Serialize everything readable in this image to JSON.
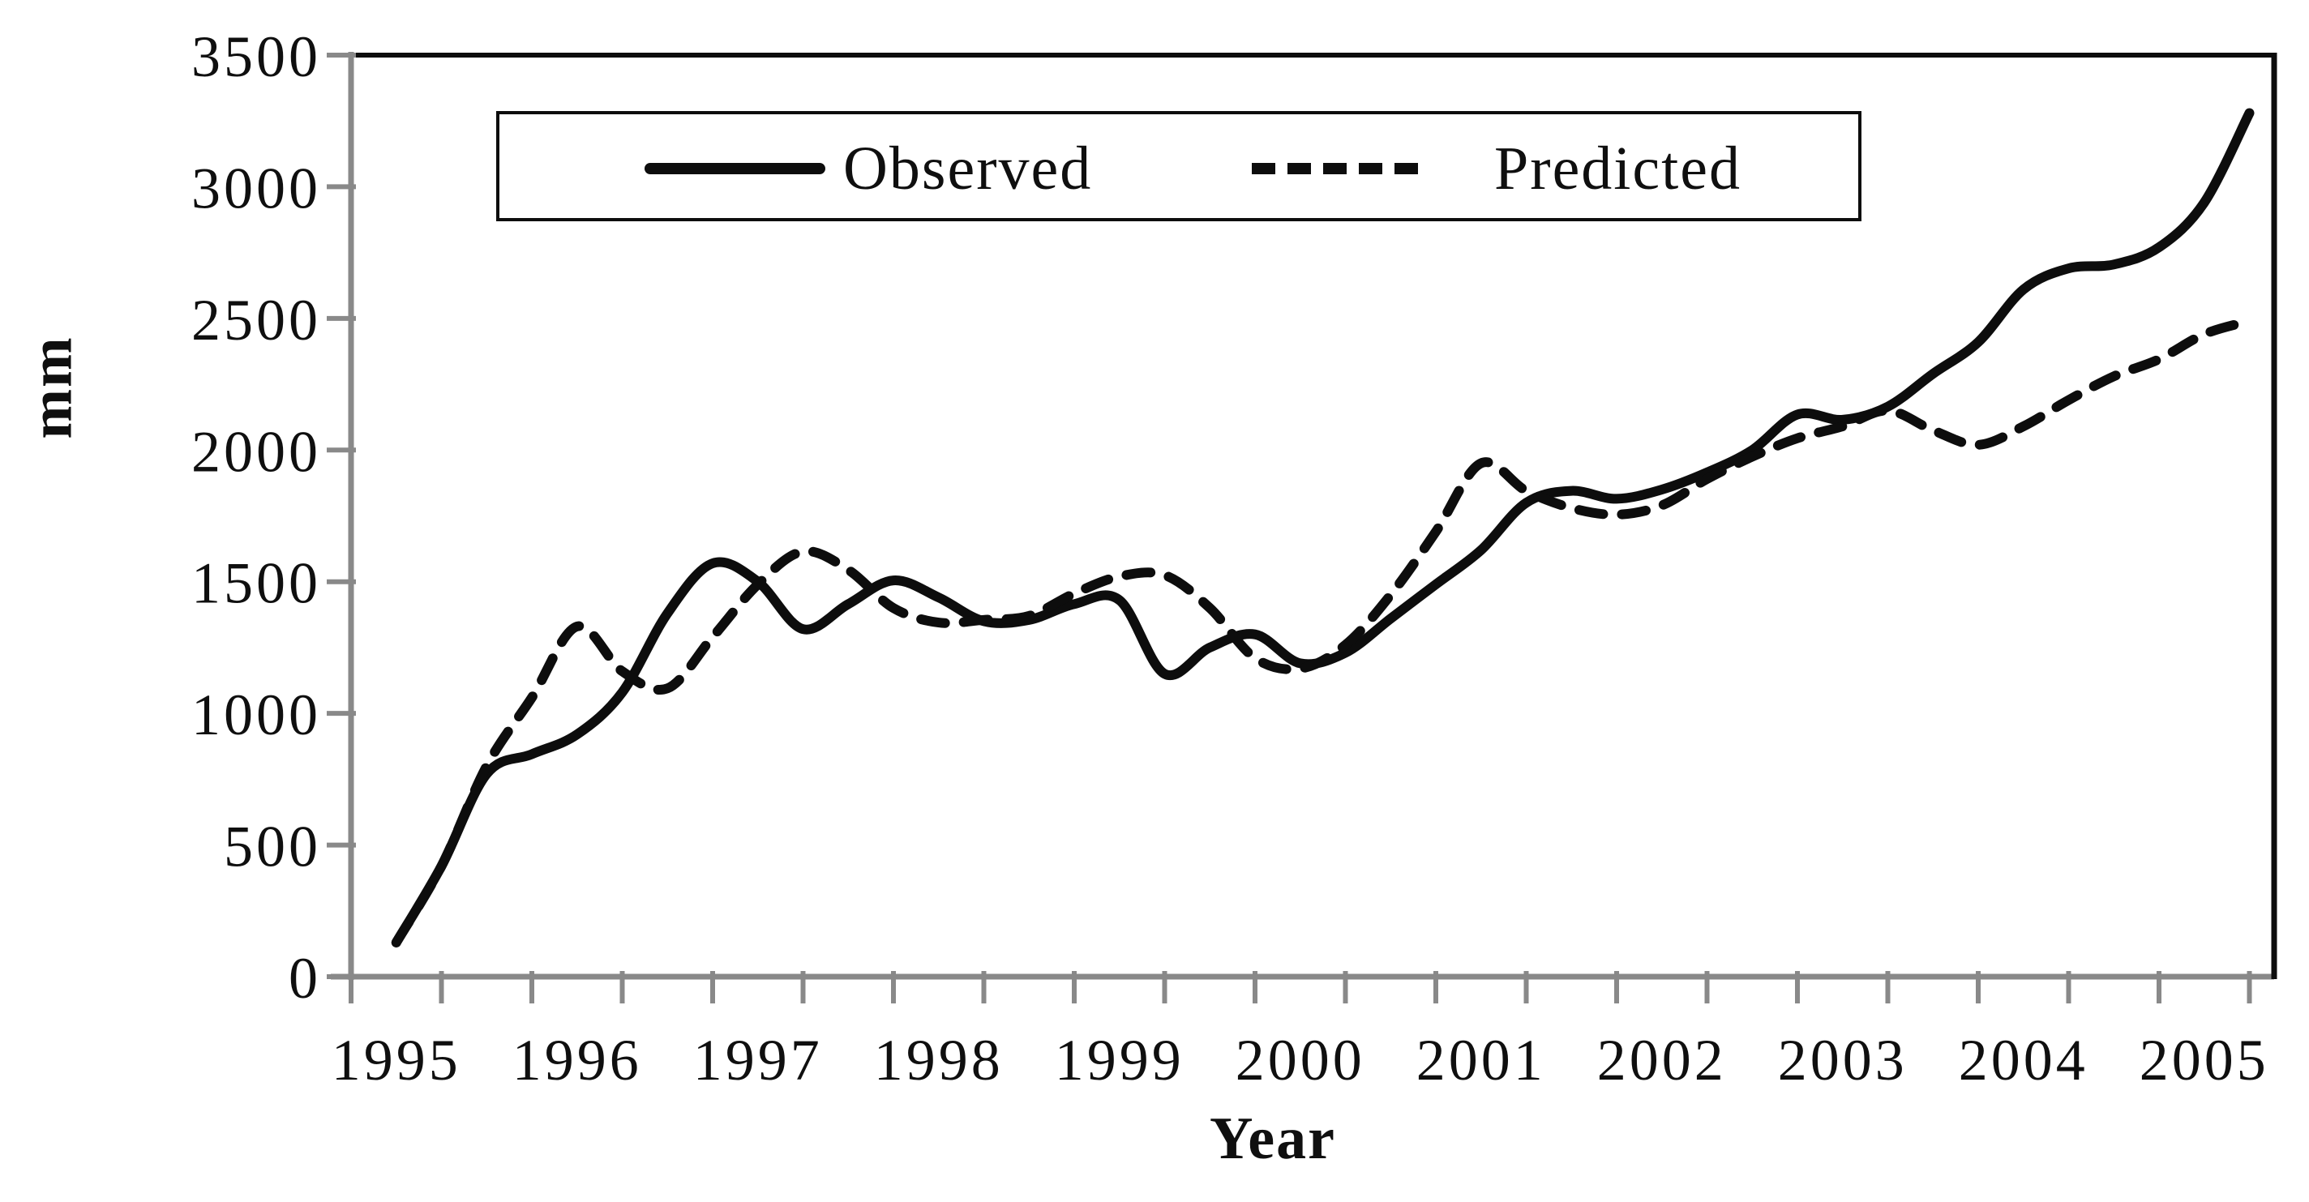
{
  "chart_data": {
    "type": "line",
    "title": "",
    "xlabel": "Year",
    "ylabel": "mm",
    "x_unit": "decimal_year",
    "xlim": [
      1995,
      2005.65
    ],
    "ylim": [
      0,
      3500
    ],
    "y_tick_step": 500,
    "x_minor_tick_step": 0.5,
    "grid": false,
    "legend_position": "top-center-boxed",
    "y_tick_labels": [
      "0",
      "500",
      "1000",
      "1500",
      "2000",
      "2500",
      "3000",
      "3500"
    ],
    "x_tick_labels": [
      "1995",
      "1996",
      "1997",
      "1998",
      "1999",
      "2000",
      "2001",
      "2002",
      "2003",
      "2004",
      "2005"
    ],
    "x": [
      1995.25,
      1995.5,
      1995.75,
      1996,
      1996.25,
      1996.5,
      1996.75,
      1997,
      1997.25,
      1997.5,
      1997.75,
      1998,
      1998.25,
      1998.5,
      1998.75,
      1999,
      1999.25,
      1999.5,
      1999.75,
      2000,
      2000.25,
      2000.5,
      2000.75,
      2001,
      2001.25,
      2001.5,
      2001.75,
      2002,
      2002.25,
      2002.5,
      2002.75,
      2003,
      2003.25,
      2003.5,
      2003.75,
      2004,
      2004.25,
      2004.5,
      2004.75,
      2005,
      2005.25,
      2005.5
    ],
    "series": [
      {
        "name": "Observed",
        "style": "solid",
        "color": "#0d0d0d",
        "values": [
          130,
          420,
          770,
          845,
          920,
          1080,
          1380,
          1570,
          1500,
          1320,
          1415,
          1505,
          1440,
          1350,
          1355,
          1415,
          1430,
          1150,
          1250,
          1300,
          1190,
          1230,
          1360,
          1490,
          1620,
          1800,
          1845,
          1815,
          1850,
          1915,
          2000,
          2135,
          2115,
          2165,
          2290,
          2410,
          2610,
          2690,
          2705,
          2770,
          2940,
          3280
        ]
      },
      {
        "name": "Predicted",
        "style": "dashed",
        "color": "#0d0d0d",
        "values": [
          130,
          420,
          800,
          1060,
          1330,
          1160,
          1095,
          1290,
          1490,
          1615,
          1545,
          1400,
          1345,
          1355,
          1370,
          1455,
          1520,
          1525,
          1400,
          1210,
          1170,
          1260,
          1450,
          1690,
          1950,
          1845,
          1780,
          1755,
          1790,
          1890,
          1975,
          2045,
          2090,
          2150,
          2075,
          2020,
          2090,
          2190,
          2280,
          2345,
          2440,
          2490
        ]
      }
    ]
  },
  "colors": {
    "line": "#0d0d0d",
    "axis": "#898989",
    "plot_border": "#0d0d0d",
    "background": "#ffffff",
    "text": "#0f0f0f"
  }
}
